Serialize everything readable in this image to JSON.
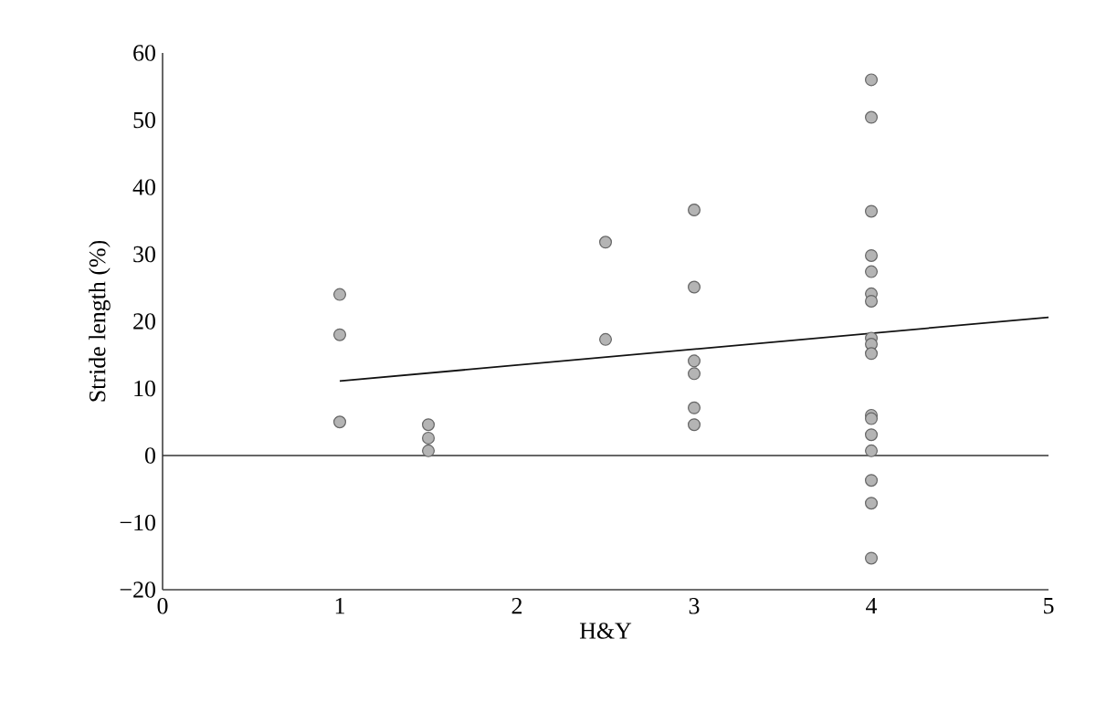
{
  "chart_data": {
    "type": "scatter",
    "xlabel": "H&Y",
    "ylabel": "Stride length (%)",
    "xlim": [
      0,
      5
    ],
    "ylim": [
      -20,
      60
    ],
    "xticks": [
      0,
      1,
      2,
      3,
      4,
      5
    ],
    "yticks": [
      {
        "value": -20,
        "label": "−20"
      },
      {
        "value": -10,
        "label": "−10"
      },
      0,
      10,
      20,
      30,
      40,
      50,
      60
    ],
    "grid": false,
    "marker": "circle",
    "ref_lines": [
      {
        "axis": "y",
        "value": 0,
        "color": "#333333"
      }
    ],
    "series": [
      {
        "color": "#b4b4b4",
        "x": [
          1,
          1,
          1,
          1.5,
          1.5,
          1.5,
          2.5,
          2.5,
          3,
          3,
          3,
          3,
          3,
          3,
          4,
          4,
          4,
          4,
          4,
          4,
          4,
          4,
          4,
          4,
          4,
          4,
          4,
          4,
          4,
          4,
          4
        ],
        "values": [
          24,
          18,
          5,
          4.6,
          2.6,
          0.7,
          31.8,
          17.3,
          36.6,
          25.1,
          14.1,
          12.2,
          7.1,
          4.6,
          56,
          50.4,
          36.4,
          29.8,
          27.4,
          24.1,
          23,
          17.5,
          16.6,
          15.2,
          6,
          5.5,
          3.1,
          0.7,
          -3.7,
          -7.1,
          -15.3
        ]
      },
      {
        "type": "line",
        "color": "#111111",
        "x": [
          1,
          5
        ],
        "values": [
          11.1,
          20.6
        ],
        "line_style": "solid",
        "marker": "none"
      }
    ]
  }
}
